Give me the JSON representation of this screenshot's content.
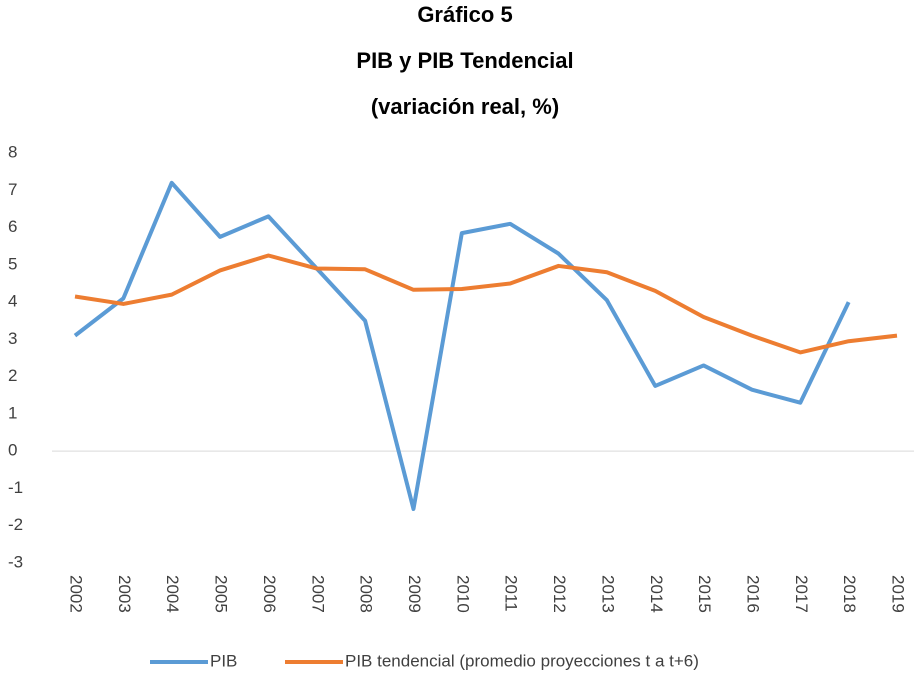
{
  "chart_data": {
    "type": "line",
    "title": [
      "Gráfico 5",
      "PIB y PIB Tendencial",
      "(variación real, %)"
    ],
    "categories": [
      "2002",
      "2003",
      "2004",
      "2005",
      "2006",
      "2007",
      "2008",
      "2009",
      "2010",
      "2011",
      "2012",
      "2013",
      "2014",
      "2015",
      "2016",
      "2017",
      "2018",
      "2019"
    ],
    "series": [
      {
        "name": "PIB",
        "color": "#5b9bd5",
        "values": [
          3.1,
          4.1,
          7.2,
          5.75,
          6.3,
          4.9,
          3.5,
          -1.55,
          5.85,
          6.1,
          5.3,
          4.05,
          1.75,
          2.3,
          1.65,
          1.3,
          4.0,
          null
        ]
      },
      {
        "name": "PIB tendencial (promedio proyecciones t a t+6)",
        "color": "#ed7d31",
        "values": [
          4.15,
          3.95,
          4.2,
          4.85,
          5.25,
          4.9,
          4.88,
          4.33,
          4.35,
          4.5,
          4.97,
          4.8,
          4.3,
          3.6,
          3.1,
          2.65,
          2.95,
          3.1
        ]
      }
    ],
    "ylim": [
      -3,
      8
    ],
    "yticks": [
      -3,
      -2,
      -1,
      0,
      1,
      2,
      3,
      4,
      5,
      6,
      7,
      8
    ],
    "grid": false,
    "legend": "bottom"
  }
}
